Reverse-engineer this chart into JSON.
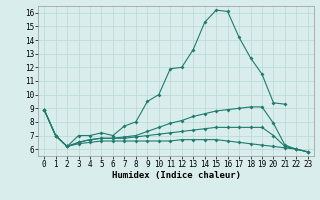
{
  "title": "",
  "xlabel": "Humidex (Indice chaleur)",
  "xlim": [
    -0.5,
    23.5
  ],
  "ylim": [
    5.5,
    16.5
  ],
  "xticks": [
    0,
    1,
    2,
    3,
    4,
    5,
    6,
    7,
    8,
    9,
    10,
    11,
    12,
    13,
    14,
    15,
    16,
    17,
    18,
    19,
    20,
    21,
    22,
    23
  ],
  "yticks": [
    6,
    7,
    8,
    9,
    10,
    11,
    12,
    13,
    14,
    15,
    16
  ],
  "background_color": "#d9eeec",
  "grid_color": "#b8d8d5",
  "line_color": "#1e7b6e",
  "lines": [
    [
      8.9,
      7.0,
      6.2,
      7.0,
      7.0,
      7.2,
      7.0,
      7.7,
      8.0,
      9.5,
      10.0,
      11.9,
      12.0,
      13.3,
      15.3,
      16.2,
      16.1,
      14.2,
      12.7,
      11.5,
      9.4,
      9.3,
      null,
      null
    ],
    [
      8.9,
      7.0,
      6.2,
      6.5,
      6.7,
      6.8,
      6.8,
      6.9,
      7.0,
      7.3,
      7.6,
      7.9,
      8.1,
      8.4,
      8.6,
      8.8,
      8.9,
      9.0,
      9.1,
      9.1,
      7.9,
      6.3,
      6.0,
      5.8
    ],
    [
      8.9,
      7.0,
      6.2,
      6.5,
      6.7,
      6.8,
      6.8,
      6.8,
      6.9,
      7.0,
      7.1,
      7.2,
      7.3,
      7.4,
      7.5,
      7.6,
      7.6,
      7.6,
      7.6,
      7.6,
      7.0,
      6.2,
      6.0,
      5.8
    ],
    [
      8.9,
      7.0,
      6.2,
      6.4,
      6.5,
      6.6,
      6.6,
      6.6,
      6.6,
      6.6,
      6.6,
      6.6,
      6.7,
      6.7,
      6.7,
      6.7,
      6.6,
      6.5,
      6.4,
      6.3,
      6.2,
      6.1,
      6.0,
      5.8
    ]
  ]
}
